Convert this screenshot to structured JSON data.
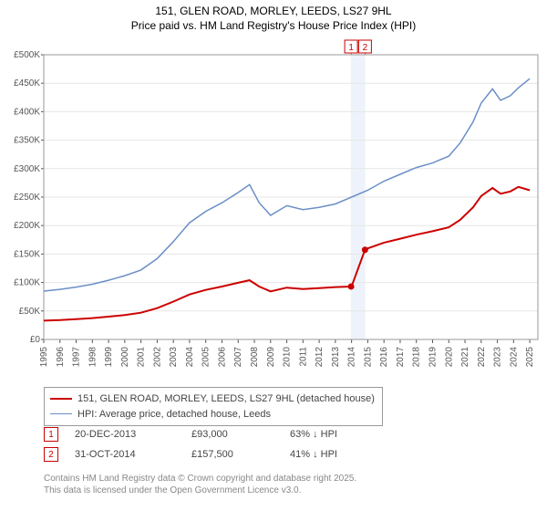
{
  "titles": {
    "line1": "151, GLEN ROAD, MORLEY, LEEDS, LS27 9HL",
    "line2": "Price paid vs. HM Land Registry's House Price Index (HPI)"
  },
  "chart": {
    "type": "line",
    "background_color": "#ffffff",
    "plot_border_color": "#999999",
    "grid_color": "#e6e6e6",
    "title_fontsize": 12,
    "tick_fontsize": 10,
    "x": {
      "min": 1995,
      "max": 2025.5,
      "ticks": [
        1995,
        1996,
        1997,
        1998,
        1999,
        2000,
        2001,
        2002,
        2003,
        2004,
        2005,
        2006,
        2007,
        2008,
        2009,
        2010,
        2011,
        2012,
        2013,
        2014,
        2015,
        2016,
        2017,
        2018,
        2019,
        2020,
        2021,
        2022,
        2023,
        2024,
        2025
      ],
      "tick_labels": [
        "1995",
        "1996",
        "1997",
        "1998",
        "1999",
        "2000",
        "2001",
        "2002",
        "2003",
        "2004",
        "2005",
        "2006",
        "2007",
        "2008",
        "2009",
        "2010",
        "2011",
        "2012",
        "2013",
        "2014",
        "2015",
        "2016",
        "2017",
        "2018",
        "2019",
        "2020",
        "2021",
        "2022",
        "2023",
        "2024",
        "2025"
      ]
    },
    "y": {
      "min": 0,
      "max": 500000,
      "ticks": [
        0,
        50000,
        100000,
        150000,
        200000,
        250000,
        300000,
        350000,
        400000,
        450000,
        500000
      ],
      "tick_labels": [
        "£0",
        "£50K",
        "£100K",
        "£150K",
        "£200K",
        "£250K",
        "£300K",
        "£350K",
        "£400K",
        "£450K",
        "£500K"
      ]
    },
    "highlight_band": {
      "x_start": 2013.95,
      "x_end": 2014.85,
      "fill": "#eef3fb"
    },
    "marker_flags": [
      {
        "n": "1",
        "x": 2013.97
      },
      {
        "n": "2",
        "x": 2014.83
      }
    ],
    "series": [
      {
        "id": "hpi",
        "label": "HPI: Average price, detached house, Leeds",
        "color": "#6b8fc7",
        "line_width": 1.5,
        "points": [
          [
            1995,
            85000
          ],
          [
            1996,
            88000
          ],
          [
            1997,
            92000
          ],
          [
            1998,
            97000
          ],
          [
            1999,
            104000
          ],
          [
            2000,
            112000
          ],
          [
            2001,
            122000
          ],
          [
            2002,
            142000
          ],
          [
            2003,
            172000
          ],
          [
            2004,
            205000
          ],
          [
            2005,
            225000
          ],
          [
            2006,
            240000
          ],
          [
            2007,
            258000
          ],
          [
            2007.7,
            272000
          ],
          [
            2008.3,
            240000
          ],
          [
            2009,
            218000
          ],
          [
            2010,
            235000
          ],
          [
            2011,
            228000
          ],
          [
            2012,
            232000
          ],
          [
            2013,
            238000
          ],
          [
            2014,
            250000
          ],
          [
            2015,
            262000
          ],
          [
            2016,
            278000
          ],
          [
            2017,
            290000
          ],
          [
            2018,
            302000
          ],
          [
            2019,
            310000
          ],
          [
            2020,
            322000
          ],
          [
            2020.7,
            345000
          ],
          [
            2021.5,
            382000
          ],
          [
            2022,
            415000
          ],
          [
            2022.7,
            440000
          ],
          [
            2023.2,
            420000
          ],
          [
            2023.8,
            428000
          ],
          [
            2024.3,
            442000
          ],
          [
            2025,
            458000
          ]
        ]
      },
      {
        "id": "price",
        "label": "151, GLEN ROAD, MORLEY, LEEDS, LS27 9HL (detached house)",
        "color": "#cc0000",
        "line_width": 2,
        "points": [
          [
            1995,
            33000
          ],
          [
            1996,
            34000
          ],
          [
            1997,
            35500
          ],
          [
            1998,
            37500
          ],
          [
            1999,
            40000
          ],
          [
            2000,
            43000
          ],
          [
            2001,
            47000
          ],
          [
            2002,
            55000
          ],
          [
            2003,
            66500
          ],
          [
            2004,
            79000
          ],
          [
            2005,
            87000
          ],
          [
            2006,
            93000
          ],
          [
            2007,
            99500
          ],
          [
            2007.7,
            104000
          ],
          [
            2008.3,
            93000
          ],
          [
            2009,
            84500
          ],
          [
            2010,
            91000
          ],
          [
            2011,
            88500
          ],
          [
            2012,
            90000
          ],
          [
            2013,
            92000
          ],
          [
            2013.97,
            93000
          ],
          [
            2014.0,
            93000
          ],
          [
            2014.83,
            157500
          ],
          [
            2015,
            160000
          ],
          [
            2016,
            170000
          ],
          [
            2017,
            177000
          ],
          [
            2018,
            184000
          ],
          [
            2019,
            190000
          ],
          [
            2020,
            197000
          ],
          [
            2020.7,
            210000
          ],
          [
            2021.5,
            232000
          ],
          [
            2022,
            252000
          ],
          [
            2022.7,
            266000
          ],
          [
            2023.2,
            256000
          ],
          [
            2023.8,
            260000
          ],
          [
            2024.3,
            268000
          ],
          [
            2025,
            262000
          ]
        ],
        "marker_dots": [
          [
            2013.97,
            93000
          ],
          [
            2014.83,
            157500
          ]
        ]
      }
    ]
  },
  "legend": {
    "border_color": "#999999",
    "items": [
      {
        "series": "price",
        "label": "151, GLEN ROAD, MORLEY, LEEDS, LS27 9HL (detached house)",
        "color": "#cc0000"
      },
      {
        "series": "hpi",
        "label": "HPI: Average price, detached house, Leeds",
        "color": "#6b8fc7"
      }
    ]
  },
  "markers_table": {
    "text_color": "#444444",
    "box_border_color": "#cc0000",
    "rows": [
      {
        "n": "1",
        "date": "20-DEC-2013",
        "price": "£93,000",
        "pct": "63% ↓ HPI"
      },
      {
        "n": "2",
        "date": "31-OCT-2014",
        "price": "£157,500",
        "pct": "41% ↓ HPI"
      }
    ]
  },
  "footer": {
    "line1": "Contains HM Land Registry data © Crown copyright and database right 2025.",
    "line2": "This data is licensed under the Open Government Licence v3.0."
  }
}
